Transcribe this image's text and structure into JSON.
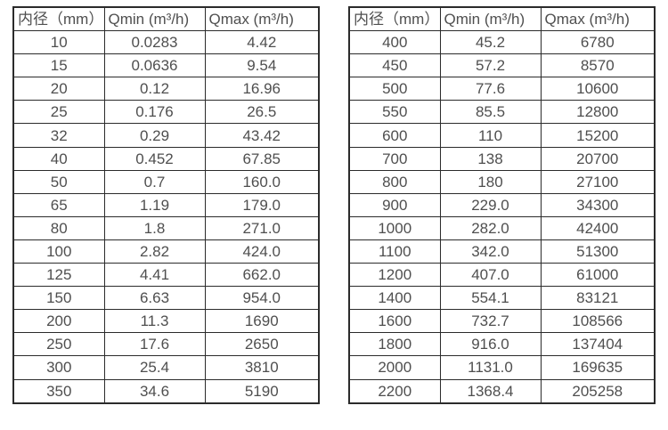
{
  "colors": {
    "background": "#ffffff",
    "border": "#2b2b2b",
    "text": "#4f4f4f"
  },
  "tables": [
    {
      "name": "flow-table-small-diameters",
      "headers": [
        "内径（mm）",
        "Qmin (m³/h)",
        "Qmax (m³/h)"
      ],
      "rows": [
        [
          "10",
          "0.0283",
          "4.42"
        ],
        [
          "15",
          "0.0636",
          "9.54"
        ],
        [
          "20",
          "0.12",
          "16.96"
        ],
        [
          "25",
          "0.176",
          "26.5"
        ],
        [
          "32",
          "0.29",
          "43.42"
        ],
        [
          "40",
          "0.452",
          "67.85"
        ],
        [
          "50",
          "0.7",
          "160.0"
        ],
        [
          "65",
          "1.19",
          "179.0"
        ],
        [
          "80",
          "1.8",
          "271.0"
        ],
        [
          "100",
          "2.82",
          "424.0"
        ],
        [
          "125",
          "4.41",
          "662.0"
        ],
        [
          "150",
          "6.63",
          "954.0"
        ],
        [
          "200",
          "11.3",
          "1690"
        ],
        [
          "250",
          "17.6",
          "2650"
        ],
        [
          "300",
          "25.4",
          "3810"
        ],
        [
          "350",
          "34.6",
          "5190"
        ]
      ]
    },
    {
      "name": "flow-table-large-diameters",
      "headers": [
        "内径（mm）",
        "Qmin (m³/h)",
        "Qmax (m³/h)"
      ],
      "rows": [
        [
          "400",
          "45.2",
          "6780"
        ],
        [
          "450",
          "57.2",
          "8570"
        ],
        [
          "500",
          "77.6",
          "10600"
        ],
        [
          "550",
          "85.5",
          "12800"
        ],
        [
          "600",
          "110",
          "15200"
        ],
        [
          "700",
          "138",
          "20700"
        ],
        [
          "800",
          "180",
          "27100"
        ],
        [
          "900",
          "229.0",
          "34300"
        ],
        [
          "1000",
          "282.0",
          "42400"
        ],
        [
          "1100",
          "342.0",
          "51300"
        ],
        [
          "1200",
          "407.0",
          "61000"
        ],
        [
          "1400",
          "554.1",
          "83121"
        ],
        [
          "1600",
          "732.7",
          "108566"
        ],
        [
          "1800",
          "916.0",
          "137404"
        ],
        [
          "2000",
          "1131.0",
          "169635"
        ],
        [
          "2200",
          "1368.4",
          "205258"
        ]
      ]
    }
  ]
}
